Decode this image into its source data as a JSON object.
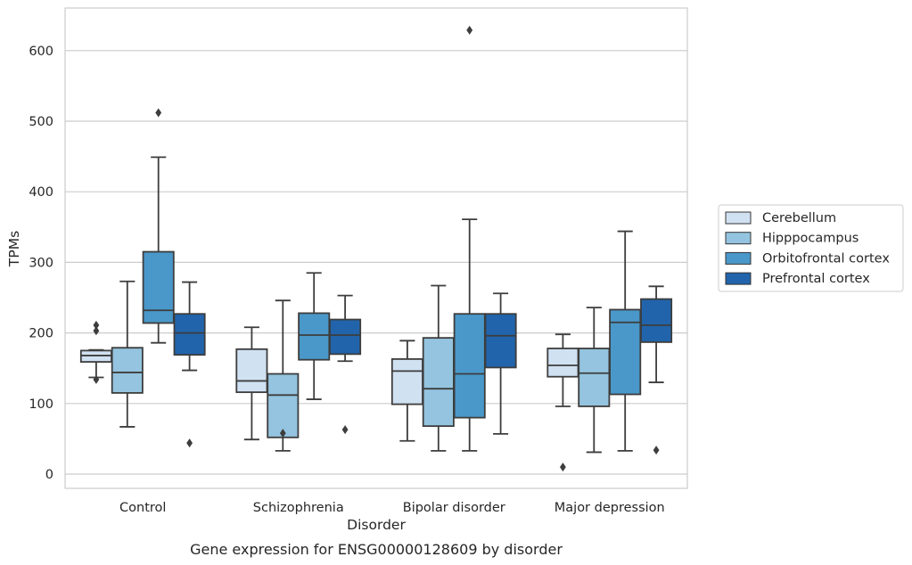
{
  "caption": "Gene expression for ENSG00000128609 by disorder",
  "chart_data": {
    "type": "box",
    "xlabel": "Disorder",
    "ylabel": "TPMs",
    "ylim": [
      -20,
      660
    ],
    "yticks": [
      0,
      100,
      200,
      300,
      400,
      500,
      600
    ],
    "grid": "horizontal",
    "legend_position": "right",
    "categories": [
      "Control",
      "Schizophrenia",
      "Bipolar disorder",
      "Major depression"
    ],
    "series": [
      {
        "name": "Cerebellum",
        "color": "#d0e1f2",
        "boxes": [
          {
            "whisker_low": 137,
            "q1": 159,
            "median": 168,
            "q3": 175,
            "whisker_high": 176,
            "outliers": [
              211,
              203,
              134
            ]
          },
          {
            "whisker_low": 49,
            "q1": 116,
            "median": 132,
            "q3": 177,
            "whisker_high": 208,
            "outliers": []
          },
          {
            "whisker_low": 47,
            "q1": 99,
            "median": 146,
            "q3": 163,
            "whisker_high": 189,
            "outliers": []
          },
          {
            "whisker_low": 96,
            "q1": 138,
            "median": 154,
            "q3": 178,
            "whisker_high": 198,
            "outliers": [
              10
            ]
          }
        ]
      },
      {
        "name": "Hipppocampus",
        "color": "#94c4df",
        "boxes": [
          {
            "whisker_low": 67,
            "q1": 115,
            "median": 144,
            "q3": 179,
            "whisker_high": 273,
            "outliers": []
          },
          {
            "whisker_low": 33,
            "q1": 52,
            "median": 112,
            "q3": 142,
            "whisker_high": 246,
            "outliers": [
              58
            ]
          },
          {
            "whisker_low": 33,
            "q1": 68,
            "median": 121,
            "q3": 193,
            "whisker_high": 267,
            "outliers": []
          },
          {
            "whisker_low": 31,
            "q1": 96,
            "median": 143,
            "q3": 178,
            "whisker_high": 236,
            "outliers": []
          }
        ]
      },
      {
        "name": "Orbitofrontal cortex",
        "color": "#4a98c9",
        "boxes": [
          {
            "whisker_low": 186,
            "q1": 214,
            "median": 232,
            "q3": 315,
            "whisker_high": 449,
            "outliers": [
              512
            ]
          },
          {
            "whisker_low": 106,
            "q1": 162,
            "median": 197,
            "q3": 228,
            "whisker_high": 285,
            "outliers": []
          },
          {
            "whisker_low": 33,
            "q1": 80,
            "median": 142,
            "q3": 227,
            "whisker_high": 361,
            "outliers": [
              629
            ]
          },
          {
            "whisker_low": 33,
            "q1": 113,
            "median": 215,
            "q3": 233,
            "whisker_high": 344,
            "outliers": []
          }
        ]
      },
      {
        "name": "Prefrontal cortex",
        "color": "#2164ab",
        "boxes": [
          {
            "whisker_low": 147,
            "q1": 169,
            "median": 200,
            "q3": 227,
            "whisker_high": 272,
            "outliers": [
              44
            ]
          },
          {
            "whisker_low": 160,
            "q1": 170,
            "median": 197,
            "q3": 219,
            "whisker_high": 253,
            "outliers": [
              63
            ]
          },
          {
            "whisker_low": 57,
            "q1": 151,
            "median": 196,
            "q3": 227,
            "whisker_high": 256,
            "outliers": []
          },
          {
            "whisker_low": 130,
            "q1": 187,
            "median": 211,
            "q3": 248,
            "whisker_high": 266,
            "outliers": [
              34
            ]
          }
        ]
      }
    ]
  }
}
